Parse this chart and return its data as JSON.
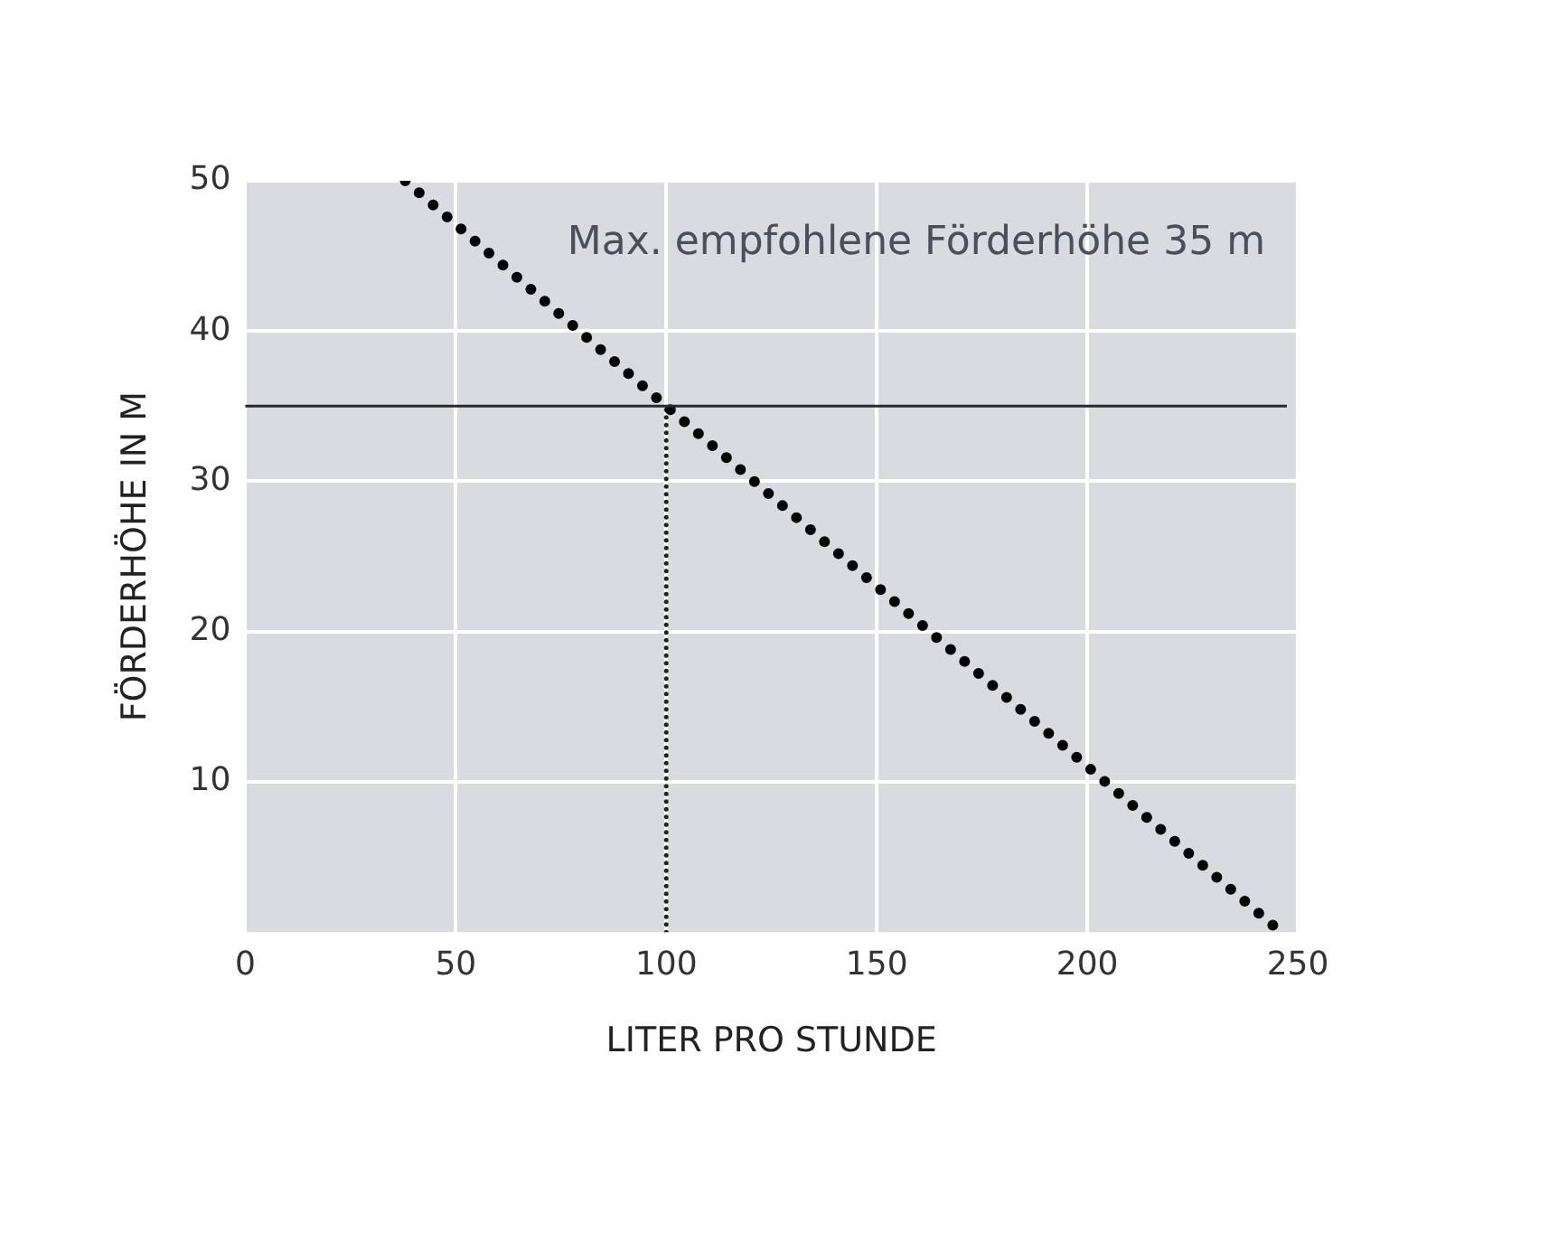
{
  "chart_data": {
    "type": "line",
    "xlabel": "LITER PRO STUNDE",
    "ylabel": "FÖRDERHÖHE IN M",
    "series": [
      {
        "x": [
          38,
          100,
          246
        ],
        "values": [
          50,
          35,
          0
        ],
        "color": "#000000",
        "line_style": "dotted"
      },
      {
        "x": [
          100,
          100
        ],
        "values": [
          0,
          35
        ],
        "color": "#222222",
        "line_style": "dotted"
      }
    ],
    "xlim": [
      0,
      250
    ],
    "xticks": [
      0,
      50,
      100,
      150,
      200,
      250
    ],
    "ylim": [
      0,
      50
    ],
    "yticks": [
      10,
      20,
      30,
      40,
      50
    ],
    "ref_lines": [
      {
        "axis": "y",
        "value": 35,
        "color": "#2a2a2a",
        "line_style": "solid"
      }
    ],
    "annotations": [
      "Max. empfohlene Förderhöhe 35 m"
    ],
    "grid": true,
    "legend": false,
    "marker": "none"
  }
}
